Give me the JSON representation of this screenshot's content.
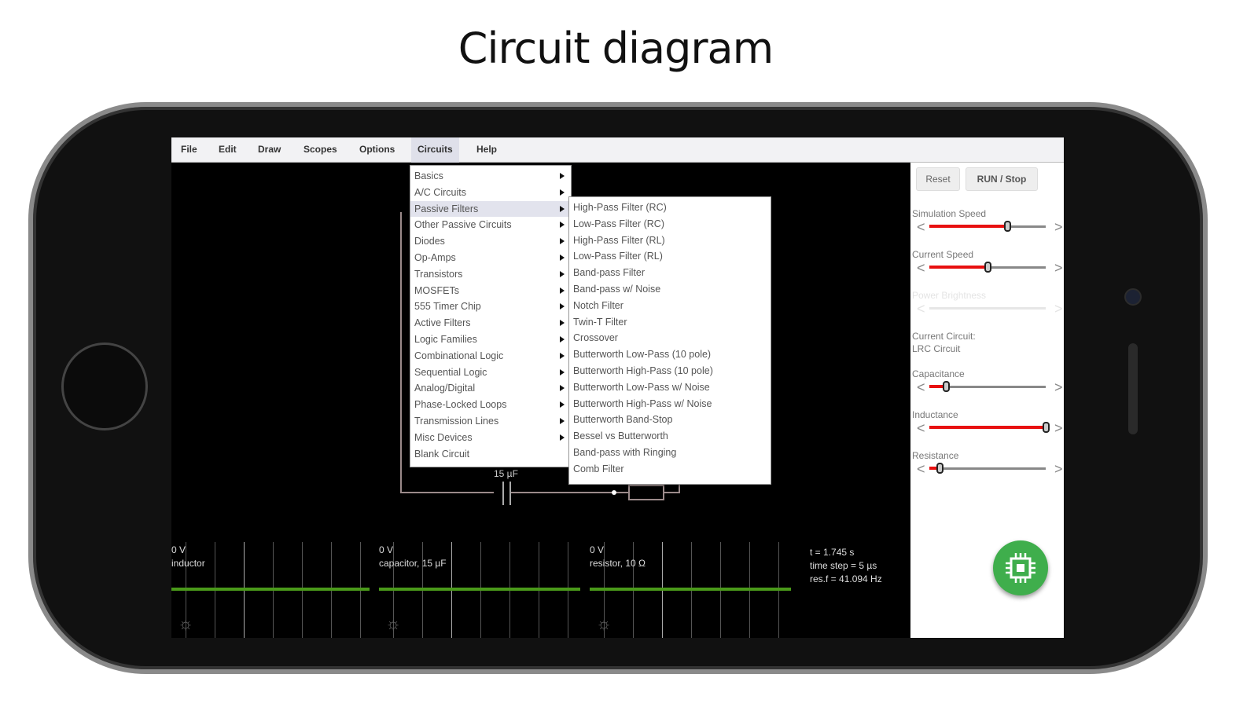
{
  "page_title": "Circuit diagram",
  "menubar": [
    "File",
    "Edit",
    "Draw",
    "Scopes",
    "Options",
    "Circuits",
    "Help"
  ],
  "circuits_menu": [
    {
      "label": "Basics",
      "sub": true
    },
    {
      "label": "A/C Circuits",
      "sub": true
    },
    {
      "label": "Passive Filters",
      "sub": true,
      "highlighted": true
    },
    {
      "label": "Other Passive Circuits",
      "sub": true
    },
    {
      "label": "Diodes",
      "sub": true
    },
    {
      "label": "Op-Amps",
      "sub": true
    },
    {
      "label": "Transistors",
      "sub": true
    },
    {
      "label": "MOSFETs",
      "sub": true
    },
    {
      "label": "555 Timer Chip",
      "sub": true
    },
    {
      "label": "Active Filters",
      "sub": true
    },
    {
      "label": "Logic Families",
      "sub": true
    },
    {
      "label": "Combinational Logic",
      "sub": true
    },
    {
      "label": "Sequential Logic",
      "sub": true
    },
    {
      "label": "Analog/Digital",
      "sub": true
    },
    {
      "label": "Phase-Locked Loops",
      "sub": true
    },
    {
      "label": "Transmission Lines",
      "sub": true
    },
    {
      "label": "Misc Devices",
      "sub": true
    },
    {
      "label": "Blank Circuit",
      "sub": false
    }
  ],
  "passive_filters_menu": [
    "High-Pass Filter (RC)",
    "Low-Pass Filter (RC)",
    "High-Pass Filter (RL)",
    "Low-Pass Filter (RL)",
    "Band-pass Filter",
    "Band-pass w/ Noise",
    "Notch Filter",
    "Twin-T Filter",
    "Crossover",
    "Butterworth Low-Pass (10 pole)",
    "Butterworth High-Pass (10 pole)",
    "Butterworth Low-Pass w/ Noise",
    "Butterworth High-Pass w/ Noise",
    "Butterworth Band-Stop",
    "Bessel vs Butterworth",
    "Band-pass with Ringing",
    "Comb Filter"
  ],
  "panel": {
    "reset": "Reset",
    "run_stop": "RUN / Stop",
    "sliders": [
      {
        "label": "Simulation Speed",
        "value": 0.67,
        "enabled": true
      },
      {
        "label": "Current Speed",
        "value": 0.5,
        "enabled": true
      },
      {
        "label": "Power Brightness",
        "value": 0,
        "enabled": false
      }
    ],
    "current_circuit_label": "Current Circuit:",
    "current_circuit": "LRC Circuit",
    "params": [
      {
        "label": "Capacitance",
        "value": 0.14,
        "enabled": true
      },
      {
        "label": "Inductance",
        "value": 1.0,
        "enabled": true
      },
      {
        "label": "Resistance",
        "value": 0.09,
        "enabled": true
      }
    ]
  },
  "circuit": {
    "capacitor_label": "15 µF"
  },
  "scopes": [
    {
      "voltage": "0 V",
      "name": "inductor"
    },
    {
      "voltage": "0 V",
      "name": "capacitor, 15 µF"
    },
    {
      "voltage": "0 V",
      "name": "resistor, 10 Ω"
    }
  ],
  "status": {
    "time": "t = 1.745 s",
    "time_step": "time step = 5 µs",
    "res_f": "res.f = 41.094 Hz"
  },
  "colors": {
    "trace": "#4a9a1a",
    "slider_fill": "#e81010",
    "fab": "#3fae4c"
  },
  "icons": {
    "fab": "chip-icon",
    "scope_settings": "gear-icon",
    "submenu": "triangle-right-icon"
  }
}
